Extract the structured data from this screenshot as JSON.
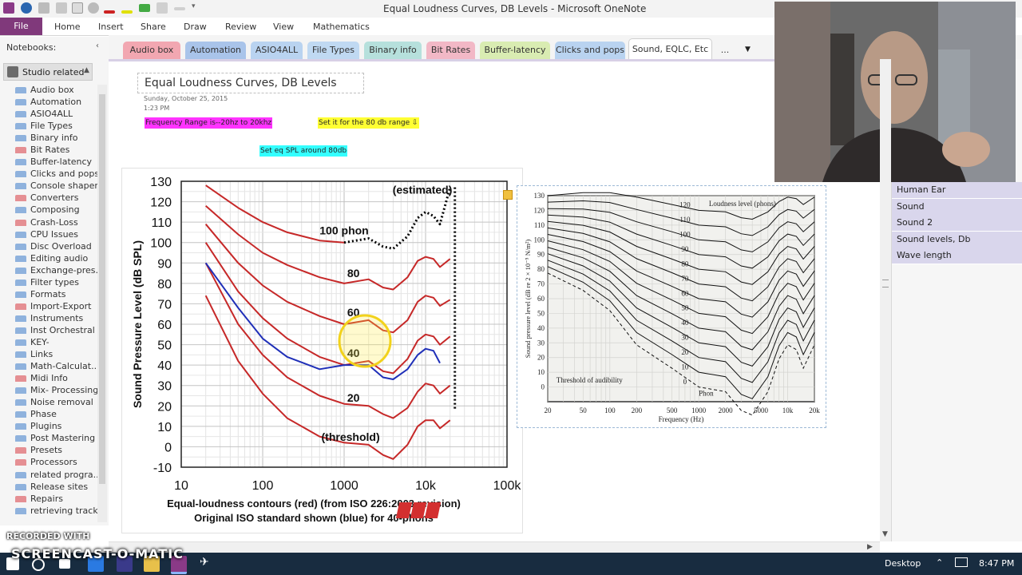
{
  "window": {
    "title": "Equal Loudness Curves, DB Levels - Microsoft OneNote"
  },
  "ribbon": {
    "file": "File",
    "tabs": [
      "Home",
      "Insert",
      "Share",
      "Draw",
      "Review",
      "View",
      "Mathematics"
    ]
  },
  "notebook_pane": {
    "header": "Notebooks:",
    "current_notebook": "Studio related",
    "sections": [
      {
        "label": "Audio box",
        "color": "#8fb2dd"
      },
      {
        "label": "Automation",
        "color": "#8fb2dd"
      },
      {
        "label": "ASIO4ALL",
        "color": "#8fb2dd"
      },
      {
        "label": "File Types",
        "color": "#8fb2dd"
      },
      {
        "label": "Binary info",
        "color": "#8fb2dd"
      },
      {
        "label": "Bit Rates",
        "color": "#e58f93"
      },
      {
        "label": "Buffer-latency",
        "color": "#8fb2dd"
      },
      {
        "label": "Clicks and pops",
        "color": "#8fb2dd"
      },
      {
        "label": "Console shaper",
        "color": "#8fb2dd"
      },
      {
        "label": "Converters",
        "color": "#e58f93"
      },
      {
        "label": "Composing",
        "color": "#8fb2dd"
      },
      {
        "label": "Crash-Loss",
        "color": "#e58f93"
      },
      {
        "label": "CPU Issues",
        "color": "#8fb2dd"
      },
      {
        "label": "Disc Overload",
        "color": "#8fb2dd"
      },
      {
        "label": "Editing audio",
        "color": "#8fb2dd"
      },
      {
        "label": "Exchange-pres...",
        "color": "#8fb2dd"
      },
      {
        "label": "Filter types",
        "color": "#8fb2dd"
      },
      {
        "label": "Formats",
        "color": "#8fb2dd"
      },
      {
        "label": "Import-Export",
        "color": "#e58f93"
      },
      {
        "label": "Instruments",
        "color": "#8fb2dd"
      },
      {
        "label": "Inst Orchestral",
        "color": "#8fb2dd"
      },
      {
        "label": "KEY-",
        "color": "#8fb2dd"
      },
      {
        "label": "Links",
        "color": "#8fb2dd"
      },
      {
        "label": "Math-Calculat...",
        "color": "#8fb2dd"
      },
      {
        "label": "Midi Info",
        "color": "#e58f93"
      },
      {
        "label": "Mix- Processing",
        "color": "#8fb2dd"
      },
      {
        "label": "Noise removal",
        "color": "#8fb2dd"
      },
      {
        "label": "Phase",
        "color": "#8fb2dd"
      },
      {
        "label": "Plugins",
        "color": "#8fb2dd"
      },
      {
        "label": "Post Mastering",
        "color": "#8fb2dd"
      },
      {
        "label": "Presets",
        "color": "#e58f93"
      },
      {
        "label": "Processors",
        "color": "#e58f93"
      },
      {
        "label": "related progra...",
        "color": "#8fb2dd"
      },
      {
        "label": "Release sites",
        "color": "#8fb2dd"
      },
      {
        "label": "Repairs",
        "color": "#e58f93"
      },
      {
        "label": "retrieving tracks",
        "color": "#8fb2dd"
      }
    ]
  },
  "section_tabs": [
    {
      "label": "Audio box",
      "color": "#f2a7b1"
    },
    {
      "label": "Automation",
      "color": "#a9c4ea"
    },
    {
      "label": "ASIO4ALL",
      "color": "#b9d3f0"
    },
    {
      "label": "File Types",
      "color": "#c0d9f2"
    },
    {
      "label": "Binary info",
      "color": "#b6e0dc"
    },
    {
      "label": "Bit Rates",
      "color": "#f2b8c6"
    },
    {
      "label": "Buffer-latency",
      "color": "#d9ecb2"
    },
    {
      "label": "Clicks and pops",
      "color": "#b9d3f0"
    },
    {
      "label": "Sound, EQLC, Etc",
      "color": "#ffffff"
    },
    {
      "label": "...",
      "color": "#f4f4f4"
    }
  ],
  "page": {
    "title": "Equal Loudness Curves, DB Levels",
    "date": "Sunday, October 25, 2015",
    "time": "1:23 PM",
    "note1": "Frequency Range is--20hz to 20khz",
    "note2": "Set it for the 80 db range",
    "note3": "Set eq SPL around 80db",
    "note1_color": "#ff33ff",
    "note2_color": "#ffff33",
    "note3_color": "#33ffff"
  },
  "chart_data": [
    {
      "type": "line",
      "ylabel": "Sound Pressure Level (dB SPL)",
      "xlabel": "Equal-loudness contours (red) (from ISO 226:2003 revision)",
      "subtitle": "Original ISO standard shown (blue) for 40-phons",
      "x_scale": "log",
      "xlim": [
        10,
        100000
      ],
      "ylim": [
        -10,
        130
      ],
      "x_ticks": [
        "10",
        "100",
        "1000",
        "10k",
        "100k"
      ],
      "y_ticks": [
        "130",
        "120",
        "110",
        "100",
        "90",
        "80",
        "70",
        "60",
        "50",
        "40",
        "30",
        "20",
        "10",
        "0",
        "-10"
      ],
      "annotations": [
        "(estimated)",
        "100 phon",
        "80",
        "60",
        "40",
        "20",
        "(threshold)"
      ],
      "logo": "SOS",
      "series": [
        {
          "name": "(threshold)",
          "color": "#c62828",
          "x": [
            20,
            50,
            100,
            200,
            500,
            1000,
            2000,
            3000,
            4000,
            6000,
            8000,
            10000,
            12500,
            15000,
            20000
          ],
          "y": [
            74,
            42,
            26,
            14,
            5,
            2,
            1,
            -4,
            -6,
            1,
            10,
            13,
            13,
            9,
            13
          ]
        },
        {
          "name": "20",
          "color": "#c62828",
          "x": [
            20,
            50,
            100,
            200,
            500,
            1000,
            2000,
            3000,
            4000,
            6000,
            8000,
            10000,
            12500,
            15000,
            20000
          ],
          "y": [
            90,
            60,
            45,
            34,
            25,
            21,
            20,
            16,
            14,
            19,
            27,
            31,
            30,
            26,
            30
          ]
        },
        {
          "name": "40",
          "color": "#c62828",
          "x": [
            20,
            50,
            100,
            200,
            500,
            1000,
            2000,
            3000,
            4000,
            6000,
            8000,
            10000,
            12500,
            15000,
            20000
          ],
          "y": [
            100,
            76,
            63,
            53,
            44,
            40,
            42,
            37,
            36,
            43,
            52,
            55,
            54,
            50,
            54
          ]
        },
        {
          "name": "60",
          "color": "#c62828",
          "x": [
            20,
            50,
            100,
            200,
            500,
            1000,
            2000,
            3000,
            4000,
            6000,
            8000,
            10000,
            12500,
            15000,
            20000
          ],
          "y": [
            109,
            90,
            79,
            71,
            64,
            60,
            62,
            57,
            56,
            62,
            71,
            74,
            73,
            69,
            72
          ]
        },
        {
          "name": "80",
          "color": "#c62828",
          "x": [
            20,
            50,
            100,
            200,
            500,
            1000,
            2000,
            3000,
            4000,
            6000,
            8000,
            10000,
            12500,
            15000,
            20000
          ],
          "y": [
            118,
            104,
            95,
            89,
            83,
            80,
            82,
            78,
            77,
            83,
            91,
            93,
            92,
            88,
            92
          ]
        },
        {
          "name": "100 phon",
          "color": "#c62828",
          "x": [
            20,
            50,
            100,
            200,
            500,
            1000
          ],
          "y": [
            128,
            117,
            110,
            105,
            101,
            100
          ]
        },
        {
          "name": "(estimated)",
          "color": "#000000",
          "x": [
            1000,
            2000,
            3000,
            4000,
            6000,
            8000,
            10000,
            12500,
            15000,
            20000
          ],
          "y": [
            100,
            102,
            98,
            97,
            103,
            112,
            115,
            113,
            109,
            127
          ]
        },
        {
          "name": "40-phons (original ISO)",
          "color": "#1f2fb8",
          "x": [
            20,
            50,
            100,
            200,
            500,
            1000,
            2000,
            3000,
            4000,
            6000,
            8000,
            10000,
            12500,
            15000
          ],
          "y": [
            90,
            68,
            53,
            44,
            38,
            40,
            40,
            34,
            33,
            38,
            45,
            48,
            47,
            41
          ]
        }
      ]
    },
    {
      "type": "line",
      "ylabel": "Sound pressure level (dB re 2 × 10⁻⁵ N/m²)",
      "xlabel": "Frequency (Hz)",
      "x_scale": "log",
      "xlim": [
        20,
        20000
      ],
      "ylim": [
        -10,
        130
      ],
      "x_ticks": [
        "20",
        "50",
        "100",
        "200",
        "500",
        "1000",
        "2000",
        "5000",
        "10k",
        "20k"
      ],
      "y_ticks": [
        "130",
        "120",
        "110",
        "100",
        "90",
        "80",
        "70",
        "60",
        "50",
        "40",
        "30",
        "20",
        "10",
        "0"
      ],
      "annotations": [
        "Loudness level (phons)",
        "Threshold of audibility",
        "Phon"
      ],
      "phon_labels": [
        "120",
        "110",
        "100",
        "90",
        "80",
        "70",
        "60",
        "50",
        "40",
        "30",
        "20",
        "10",
        "0"
      ],
      "x_values": [
        20,
        50,
        100,
        200,
        500,
        1000,
        2000,
        3000,
        4000,
        6000,
        8000,
        10000,
        12500,
        15000,
        20000
      ],
      "offsets": [
        10,
        12,
        12,
        9,
        4,
        0,
        -1,
        -5,
        -6,
        -1,
        6,
        9,
        8,
        4,
        9
      ]
    }
  ],
  "page_list": [
    "Human Ear",
    "Sound",
    "Sound 2",
    "Sound levels, Db",
    "Wave length"
  ],
  "taskbar": {
    "desktop": "Desktop",
    "clock": "8:47 PM"
  },
  "watermark": {
    "top": "RECORDED WITH",
    "main": "SCREENCAST-O-MATIC"
  }
}
